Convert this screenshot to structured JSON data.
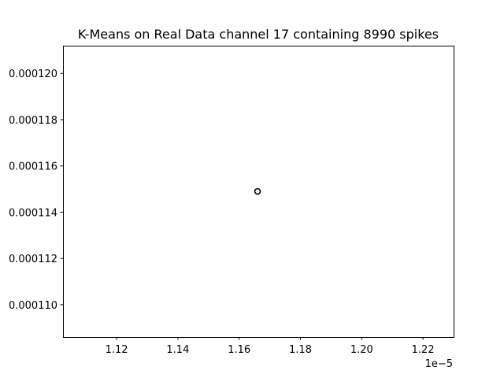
{
  "chart_data": {
    "type": "scatter",
    "title": "K-Means on Real Data channel 17 containing 8990 spikes",
    "xlabel": "",
    "ylabel": "",
    "x_offset_text": "1e−5",
    "xlim": [
      1.1025,
      1.23
    ],
    "ylim": [
      0.0001086,
      0.0001212
    ],
    "x_ticks": [
      1.12,
      1.14,
      1.16,
      1.18,
      1.2,
      1.22
    ],
    "x_tick_labels": [
      "1.12",
      "1.14",
      "1.16",
      "1.18",
      "1.20",
      "1.22"
    ],
    "y_ticks": [
      0.00011,
      0.000112,
      0.000114,
      0.000116,
      0.000118,
      0.00012
    ],
    "y_tick_labels": [
      "0.000110",
      "0.000112",
      "0.000114",
      "0.000116",
      "0.000118",
      "0.000120"
    ],
    "grid": false,
    "series": [
      {
        "points": [
          {
            "x": 1.166,
            "y": 0.0001149
          }
        ],
        "marker": "open-circle",
        "color": "#000000"
      }
    ]
  }
}
